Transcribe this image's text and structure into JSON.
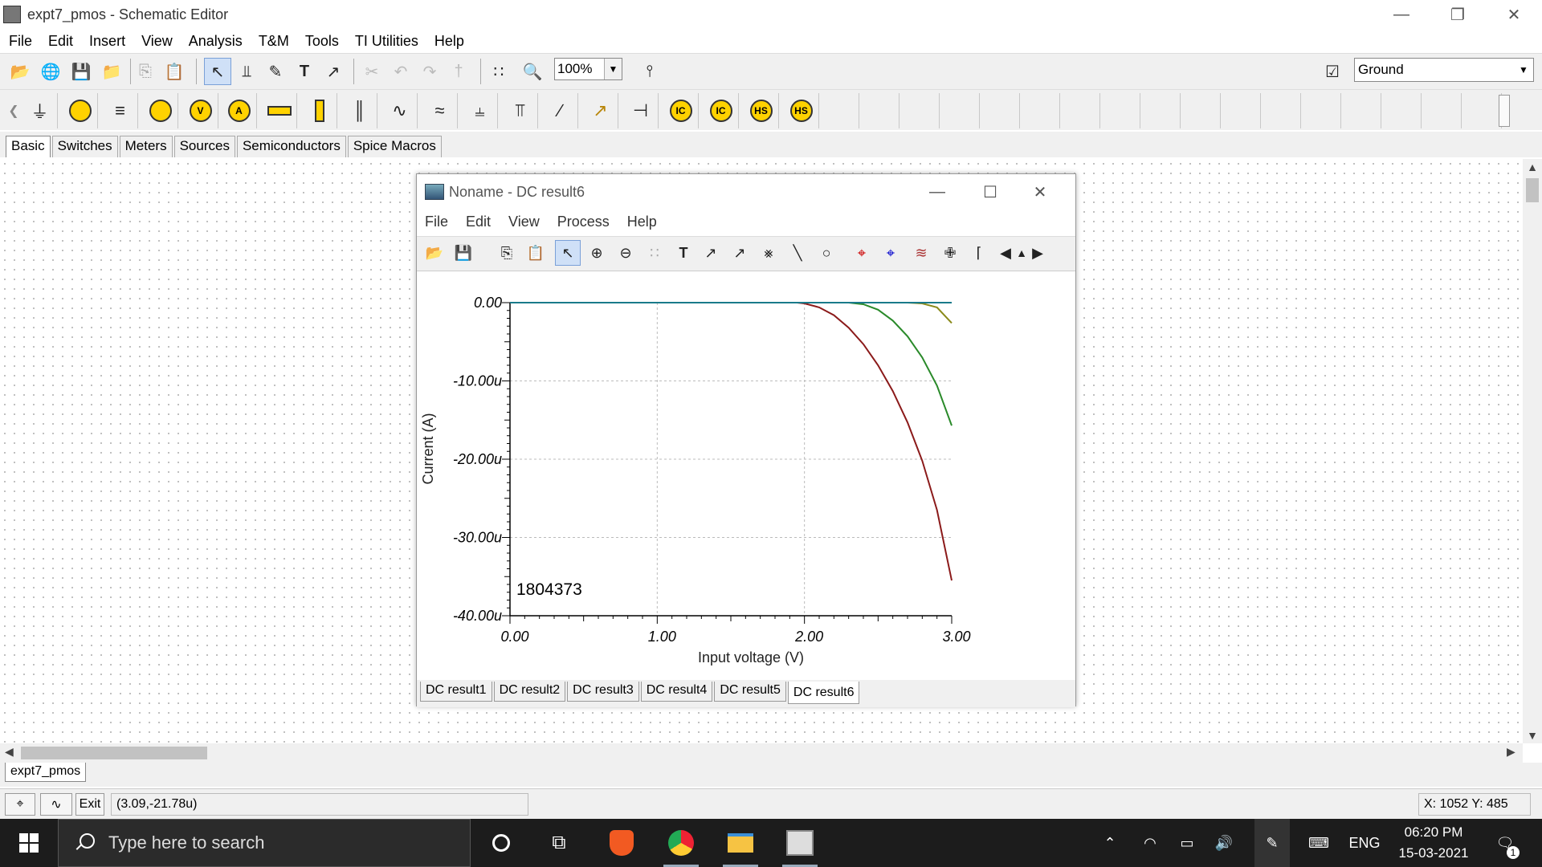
{
  "window": {
    "title": "expt7_pmos - Schematic Editor"
  },
  "menu": [
    "File",
    "Edit",
    "Insert",
    "View",
    "Analysis",
    "T&M",
    "Tools",
    "TI Utilities",
    "Help"
  ],
  "toolbar": {
    "zoom": "100%",
    "component_select": "Ground"
  },
  "component_tabs": [
    "Basic",
    "Switches",
    "Meters",
    "Sources",
    "Semiconductors",
    "Spice Macros"
  ],
  "component_glyphs": [
    "IC",
    "IC",
    "HS",
    "HS"
  ],
  "sheet_tab": "expt7_pmos",
  "status": {
    "exit_label": "Exit",
    "coords": "(3.09,-21.78u)",
    "xy": "X: 1052  Y: 485"
  },
  "taskbar": {
    "search_placeholder": "Type here to search",
    "lang": "ENG",
    "time": "06:20 PM",
    "date": "15-03-2021",
    "notif_count": "1"
  },
  "child": {
    "title": "Noname - DC result6",
    "menu": [
      "File",
      "Edit",
      "View",
      "Process",
      "Help"
    ],
    "tabs": [
      "DC result1",
      "DC result2",
      "DC result3",
      "DC result4",
      "DC result5",
      "DC result6"
    ]
  },
  "chart_data": {
    "type": "line",
    "xlabel": "Input voltage (V)",
    "ylabel": "Current (A)",
    "xlim": [
      0,
      3
    ],
    "ylim": [
      -40,
      0
    ],
    "x_ticks": [
      "0.00",
      "1.00",
      "2.00",
      "3.00"
    ],
    "y_ticks": [
      "0.00",
      "-10.00u",
      "-20.00u",
      "-30.00u",
      "-40.00u"
    ],
    "annotation": "1804373",
    "series": [
      {
        "color": "#8b1a1a",
        "x": [
          0,
          1.95,
          2.0,
          2.1,
          2.2,
          2.3,
          2.4,
          2.5,
          2.6,
          2.7,
          2.8,
          2.9,
          3.0
        ],
        "y": [
          0,
          0,
          -0.1,
          -0.6,
          -1.6,
          -3.2,
          -5.3,
          -8.0,
          -11.3,
          -15.3,
          -20.2,
          -26.5,
          -35.5
        ]
      },
      {
        "color": "#2a8a2a",
        "x": [
          0,
          2.3,
          2.4,
          2.5,
          2.6,
          2.7,
          2.8,
          2.9,
          3.0
        ],
        "y": [
          0,
          0,
          -0.2,
          -0.9,
          -2.3,
          -4.3,
          -7.0,
          -10.6,
          -15.7
        ]
      },
      {
        "color": "#8a8a1a",
        "x": [
          0,
          2.7,
          2.8,
          2.9,
          3.0
        ],
        "y": [
          0,
          0,
          -0.1,
          -0.6,
          -2.6
        ]
      },
      {
        "color": "#1a7a8a",
        "x": [
          0,
          3.0
        ],
        "y": [
          0,
          0
        ]
      }
    ]
  }
}
